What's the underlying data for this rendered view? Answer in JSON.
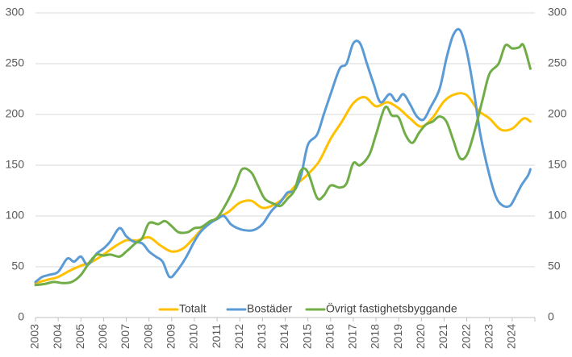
{
  "chart_data": {
    "type": "line",
    "ylim": [
      0,
      300
    ],
    "xlim": [
      2003,
      2025
    ],
    "yticks": [
      0,
      50,
      100,
      150,
      200,
      250,
      300
    ],
    "y_right_ticks": [
      0,
      50,
      100,
      150,
      200,
      250,
      300
    ],
    "xticks": [
      "2003",
      "2004",
      "2005",
      "2006",
      "2007",
      "2008",
      "2009",
      "2010",
      "2011",
      "2012",
      "2013",
      "2014",
      "2015",
      "2016",
      "2017",
      "2018",
      "2019",
      "2020",
      "2021",
      "2022",
      "2023",
      "2024"
    ],
    "grid": "horizontal",
    "legend_position": "bottom",
    "series": [
      {
        "name": "Totalt",
        "color": "#FFC000",
        "points": [
          [
            2003.0,
            34
          ],
          [
            2003.5,
            37
          ],
          [
            2004.0,
            40
          ],
          [
            2004.5,
            46
          ],
          [
            2005.0,
            51
          ],
          [
            2005.5,
            55
          ],
          [
            2006.0,
            62
          ],
          [
            2006.5,
            70
          ],
          [
            2007.0,
            76
          ],
          [
            2007.5,
            76
          ],
          [
            2008.0,
            79
          ],
          [
            2008.5,
            71
          ],
          [
            2009.0,
            65
          ],
          [
            2009.5,
            68
          ],
          [
            2010.0,
            79
          ],
          [
            2010.5,
            91
          ],
          [
            2011.0,
            98
          ],
          [
            2011.5,
            104
          ],
          [
            2012.0,
            113
          ],
          [
            2012.5,
            115
          ],
          [
            2013.0,
            108
          ],
          [
            2013.5,
            111
          ],
          [
            2014.0,
            119
          ],
          [
            2014.5,
            131
          ],
          [
            2015.0,
            141
          ],
          [
            2015.5,
            154
          ],
          [
            2016.0,
            176
          ],
          [
            2016.5,
            193
          ],
          [
            2017.0,
            211
          ],
          [
            2017.5,
            217
          ],
          [
            2018.0,
            208
          ],
          [
            2018.5,
            212
          ],
          [
            2019.0,
            206
          ],
          [
            2019.5,
            196
          ],
          [
            2020.0,
            188
          ],
          [
            2020.5,
            197
          ],
          [
            2021.0,
            213
          ],
          [
            2021.5,
            220
          ],
          [
            2022.0,
            219
          ],
          [
            2022.5,
            204
          ],
          [
            2023.0,
            196
          ],
          [
            2023.5,
            185
          ],
          [
            2024.0,
            186
          ],
          [
            2024.5,
            196
          ],
          [
            2024.8,
            193
          ]
        ]
      },
      {
        "name": "Bostäder",
        "color": "#5B9BD5",
        "points": [
          [
            2003.0,
            35
          ],
          [
            2003.3,
            40
          ],
          [
            2003.6,
            42
          ],
          [
            2004.0,
            45
          ],
          [
            2004.4,
            58
          ],
          [
            2004.7,
            55
          ],
          [
            2005.0,
            60
          ],
          [
            2005.3,
            52
          ],
          [
            2005.7,
            63
          ],
          [
            2006.0,
            68
          ],
          [
            2006.3,
            75
          ],
          [
            2006.7,
            88
          ],
          [
            2007.0,
            80
          ],
          [
            2007.3,
            75
          ],
          [
            2007.7,
            73
          ],
          [
            2008.0,
            65
          ],
          [
            2008.3,
            60
          ],
          [
            2008.6,
            55
          ],
          [
            2008.9,
            40
          ],
          [
            2009.2,
            45
          ],
          [
            2009.6,
            58
          ],
          [
            2010.0,
            75
          ],
          [
            2010.3,
            85
          ],
          [
            2010.7,
            93
          ],
          [
            2011.0,
            97
          ],
          [
            2011.3,
            100
          ],
          [
            2011.6,
            92
          ],
          [
            2011.9,
            88
          ],
          [
            2012.2,
            86
          ],
          [
            2012.6,
            86
          ],
          [
            2013.0,
            92
          ],
          [
            2013.4,
            105
          ],
          [
            2013.8,
            114
          ],
          [
            2014.1,
            123
          ],
          [
            2014.4,
            125
          ],
          [
            2014.7,
            140
          ],
          [
            2015.0,
            170
          ],
          [
            2015.4,
            180
          ],
          [
            2015.7,
            200
          ],
          [
            2016.0,
            220
          ],
          [
            2016.4,
            245
          ],
          [
            2016.7,
            250
          ],
          [
            2017.0,
            270
          ],
          [
            2017.3,
            270
          ],
          [
            2017.6,
            250
          ],
          [
            2017.9,
            230
          ],
          [
            2018.2,
            212
          ],
          [
            2018.6,
            220
          ],
          [
            2018.9,
            213
          ],
          [
            2019.2,
            220
          ],
          [
            2019.5,
            210
          ],
          [
            2019.8,
            198
          ],
          [
            2020.1,
            195
          ],
          [
            2020.4,
            207
          ],
          [
            2020.8,
            225
          ],
          [
            2021.1,
            255
          ],
          [
            2021.4,
            278
          ],
          [
            2021.7,
            283
          ],
          [
            2022.0,
            262
          ],
          [
            2022.3,
            225
          ],
          [
            2022.6,
            180
          ],
          [
            2023.0,
            140
          ],
          [
            2023.3,
            118
          ],
          [
            2023.6,
            110
          ],
          [
            2023.9,
            110
          ],
          [
            2024.1,
            117
          ],
          [
            2024.4,
            130
          ],
          [
            2024.7,
            140
          ],
          [
            2024.8,
            146
          ]
        ]
      },
      {
        "name": "Övrigt fastighetsbyggande",
        "color": "#70AD47",
        "points": [
          [
            2003.0,
            32
          ],
          [
            2003.4,
            33
          ],
          [
            2003.8,
            35
          ],
          [
            2004.2,
            34
          ],
          [
            2004.6,
            35
          ],
          [
            2005.0,
            42
          ],
          [
            2005.4,
            55
          ],
          [
            2005.7,
            62
          ],
          [
            2006.0,
            61
          ],
          [
            2006.3,
            62
          ],
          [
            2006.7,
            60
          ],
          [
            2007.0,
            65
          ],
          [
            2007.4,
            73
          ],
          [
            2007.7,
            78
          ],
          [
            2008.0,
            93
          ],
          [
            2008.4,
            92
          ],
          [
            2008.7,
            95
          ],
          [
            2009.0,
            90
          ],
          [
            2009.3,
            84
          ],
          [
            2009.7,
            84
          ],
          [
            2010.0,
            88
          ],
          [
            2010.3,
            89
          ],
          [
            2010.7,
            95
          ],
          [
            2011.0,
            98
          ],
          [
            2011.4,
            112
          ],
          [
            2011.8,
            130
          ],
          [
            2012.1,
            146
          ],
          [
            2012.5,
            143
          ],
          [
            2012.8,
            130
          ],
          [
            2013.1,
            117
          ],
          [
            2013.5,
            112
          ],
          [
            2013.8,
            110
          ],
          [
            2014.1,
            117
          ],
          [
            2014.4,
            125
          ],
          [
            2014.7,
            145
          ],
          [
            2015.0,
            143
          ],
          [
            2015.4,
            118
          ],
          [
            2015.7,
            120
          ],
          [
            2016.0,
            130
          ],
          [
            2016.4,
            128
          ],
          [
            2016.7,
            132
          ],
          [
            2017.0,
            152
          ],
          [
            2017.3,
            150
          ],
          [
            2017.7,
            160
          ],
          [
            2018.0,
            180
          ],
          [
            2018.4,
            207
          ],
          [
            2018.7,
            199
          ],
          [
            2019.0,
            197
          ],
          [
            2019.3,
            180
          ],
          [
            2019.6,
            172
          ],
          [
            2019.9,
            182
          ],
          [
            2020.2,
            190
          ],
          [
            2020.5,
            193
          ],
          [
            2020.8,
            198
          ],
          [
            2021.1,
            193
          ],
          [
            2021.4,
            175
          ],
          [
            2021.7,
            157
          ],
          [
            2022.0,
            160
          ],
          [
            2022.3,
            180
          ],
          [
            2022.7,
            215
          ],
          [
            2023.0,
            240
          ],
          [
            2023.4,
            250
          ],
          [
            2023.7,
            268
          ],
          [
            2024.0,
            265
          ],
          [
            2024.3,
            266
          ],
          [
            2024.5,
            268
          ],
          [
            2024.8,
            245
          ]
        ]
      }
    ]
  }
}
